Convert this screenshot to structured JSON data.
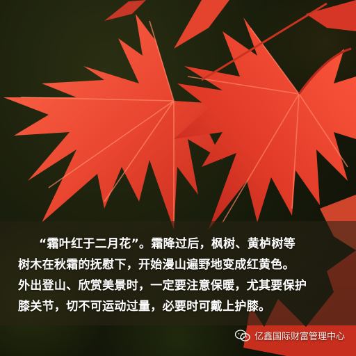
{
  "caption": {
    "lines": [
      "“霜叶红于二月花”。霜降过后，枫树、黄栌树等",
      "树木在秋霜的抚慰下，开始漫山遍野地变成红黄色。",
      "外出登山、欣赏美景时，一定要注意保暖，尤其要保护",
      "膝关节，切不可运动过量，必要时可戴上护膝。"
    ]
  },
  "watermark": {
    "icon": "wechat-icon",
    "text": "亿鑫国际财富管理中心"
  },
  "colors": {
    "leaf_main": "#e8452e",
    "leaf_highlight": "#ff6a4a",
    "leaf_shadow": "#b8241a",
    "background": "#161a0a",
    "caption_text": "#ffffff"
  }
}
